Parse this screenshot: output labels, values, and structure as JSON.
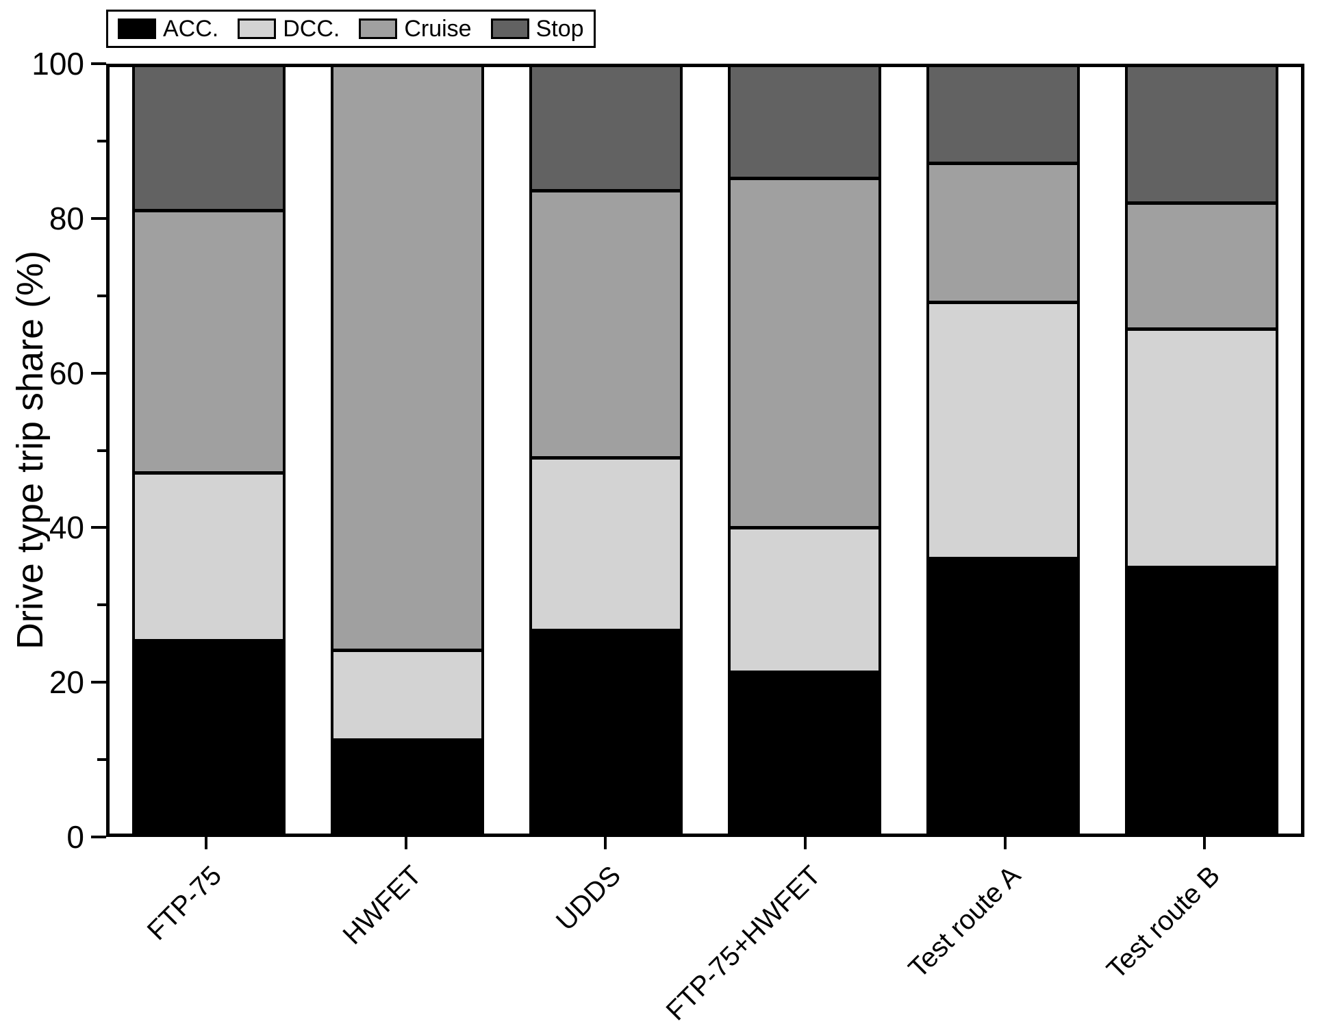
{
  "chart_data": {
    "type": "bar",
    "stacked": true,
    "orientation": "vertical",
    "title": "",
    "xlabel": "",
    "ylabel": "Drive type trip share (%)",
    "ylim": [
      0,
      100
    ],
    "yticks": [
      0,
      20,
      40,
      60,
      80,
      100
    ],
    "yticks_minor": [
      10,
      30,
      50,
      70,
      90
    ],
    "grid": false,
    "legend": {
      "position": "top-left",
      "labels": [
        "ACC.",
        "DCC.",
        "Cruise",
        "Stop"
      ]
    },
    "categories": [
      "FTP-75",
      "HWFET",
      "UDDS",
      "FTP-75+HWFET",
      "Test route A",
      "Test route B"
    ],
    "series": [
      {
        "name": "ACC.",
        "color": "#000000",
        "values": [
          25.4,
          12.4,
          26.7,
          21.3,
          36.1,
          34.9
        ]
      },
      {
        "name": "DCC.",
        "color": "#d3d3d3",
        "values": [
          21.9,
          11.7,
          22.5,
          18.8,
          33.4,
          31.1
        ]
      },
      {
        "name": "Cruise",
        "color": "#a0a0a0",
        "values": [
          34.2,
          75.9,
          34.9,
          45.6,
          18.2,
          16.5
        ]
      },
      {
        "name": "Stop",
        "color": "#626262",
        "values": [
          18.5,
          0.0,
          15.9,
          14.3,
          12.3,
          17.5
        ]
      }
    ],
    "colors": {
      "frame": "#000000",
      "background": "#ffffff"
    }
  }
}
